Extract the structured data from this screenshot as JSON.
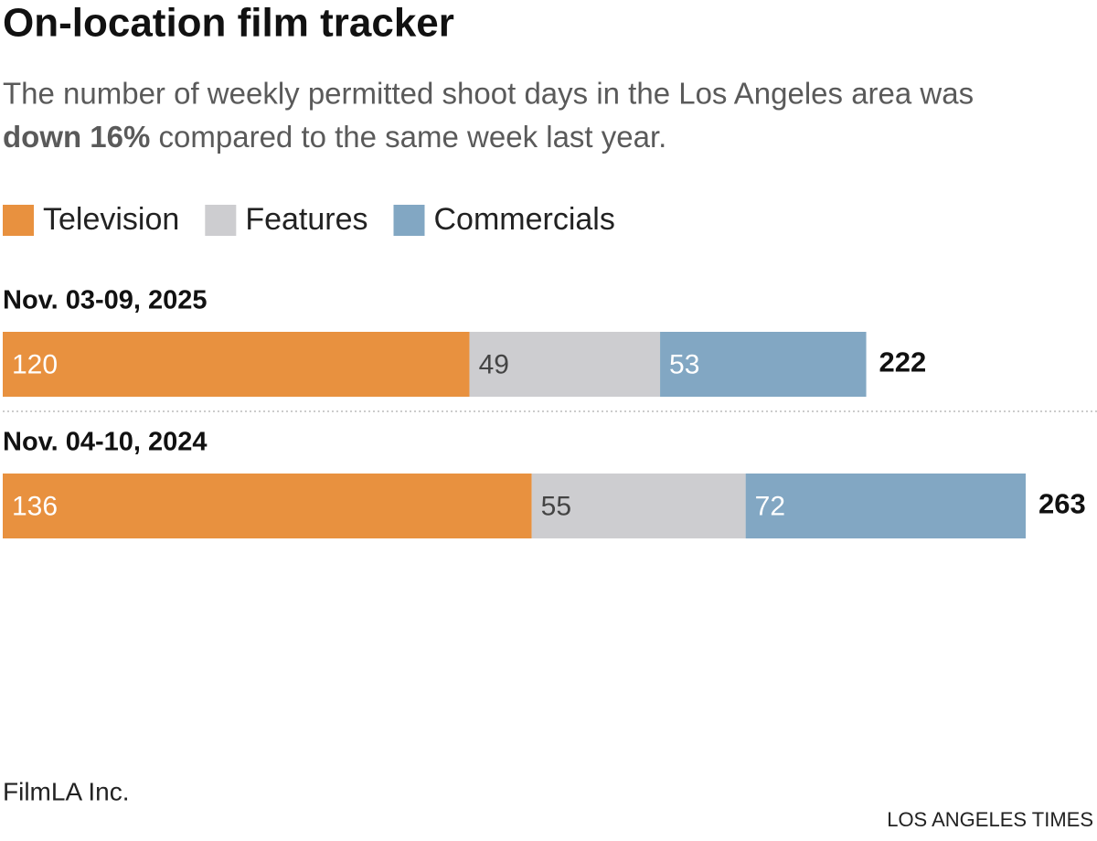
{
  "chart_data": {
    "type": "stacked-bar-horizontal",
    "title": "On-location film tracker",
    "subtitle": [
      "The number of weekly permitted shoot days in the Los Angeles area was",
      "down 16%",
      "compared to the same week last year."
    ],
    "categories": [
      "Nov. 03-09, 2025",
      "Nov. 04-10, 2024"
    ],
    "series": [
      {
        "name": "Television",
        "color": "#e8913f",
        "label_color": "#ffffff",
        "values": [
          120,
          136
        ]
      },
      {
        "name": "Features",
        "color": "#cdcdd0",
        "label_color": "#444444",
        "values": [
          49,
          55
        ]
      },
      {
        "name": "Commercials",
        "color": "#82a7c3",
        "label_color": "#ffffff",
        "values": [
          53,
          72
        ]
      }
    ],
    "totals": [
      222,
      263
    ],
    "source": "FilmLA Inc.",
    "credit": "LOS ANGELES TIMES"
  }
}
